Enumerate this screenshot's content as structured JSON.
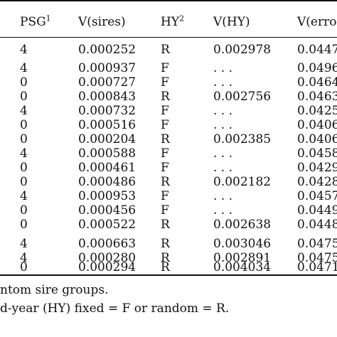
{
  "headers": {
    "psg": "PSG",
    "psg_sup": "1",
    "vsires": "V(sires)",
    "hy": "HY",
    "hy_sup": "2",
    "vhy": "V(HY)",
    "verror": "V(error"
  },
  "rows": [
    {
      "psg": "4",
      "vsires": "0.000252",
      "hy": "R",
      "vhy": "0.002978",
      "verror": "0.0447"
    },
    {
      "psg": "4",
      "vsires": "0.000937",
      "hy": "F",
      "vhy": ". . .",
      "verror": "0.0496"
    },
    {
      "psg": "0",
      "vsires": "0.000727",
      "hy": "F",
      "vhy": ". . .",
      "verror": "0.0464"
    },
    {
      "psg": "0",
      "vsires": "0.000843",
      "hy": "R",
      "vhy": "0.002756",
      "verror": "0.0463"
    },
    {
      "psg": "4",
      "vsires": "0.000732",
      "hy": "F",
      "vhy": ". . .",
      "verror": "0.0425"
    },
    {
      "psg": "0",
      "vsires": "0.000516",
      "hy": "F",
      "vhy": ". . .",
      "verror": "0.0406"
    },
    {
      "psg": "0",
      "vsires": "0.000204",
      "hy": "R",
      "vhy": "0.002385",
      "verror": "0.0406"
    },
    {
      "psg": "4",
      "vsires": "0.000588",
      "hy": "F",
      "vhy": ". . .",
      "verror": "0.0458"
    },
    {
      "psg": "0",
      "vsires": "0.000461",
      "hy": "F",
      "vhy": ". . .",
      "verror": "0.0429"
    },
    {
      "psg": "0",
      "vsires": "0.000486",
      "hy": "R",
      "vhy": "0.002182",
      "verror": "0.0428"
    },
    {
      "psg": "4",
      "vsires": "0.000953",
      "hy": "F",
      "vhy": ". . .",
      "verror": "0.0457"
    },
    {
      "psg": "0",
      "vsires": "0.000456",
      "hy": "F",
      "vhy": ". . .",
      "verror": "0.0449"
    },
    {
      "psg": "0",
      "vsires": "0.000522",
      "hy": "R",
      "vhy": "0.002638",
      "verror": "0.0448"
    },
    {
      "psg": "4",
      "vsires": "0.000663",
      "hy": "R",
      "vhy": "0.003046",
      "verror": "0.0475"
    },
    {
      "psg": "4",
      "vsires": "0.000280",
      "hy": "R",
      "vhy": "0.002891",
      "verror": "0.0475"
    },
    {
      "psg": "0",
      "vsires": "0.000294",
      "hy": "R",
      "vhy": "0.004034",
      "verror": "0.0471"
    }
  ],
  "footnotes": [
    "ntom sire groups.",
    "d-year (HY) fixed = F or random = R."
  ]
}
